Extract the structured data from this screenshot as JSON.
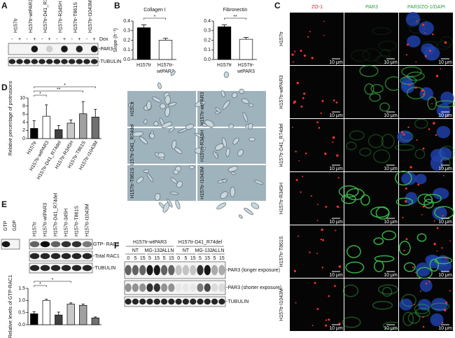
{
  "panel_letters": [
    "A",
    "B",
    "C",
    "D",
    "E",
    "F"
  ],
  "panel_a": {
    "lanes": [
      "H157tr",
      "H157tr-wtPAR3",
      "H157tr-D41_R74del",
      "H157tr-R345H",
      "H157tr-T861S",
      "H157tr-I1043M"
    ],
    "dox_label": "Dox",
    "dox": [
      "-",
      "+",
      "-",
      "+",
      "-",
      "+",
      "-",
      "+",
      "-",
      "+",
      "-",
      "+"
    ],
    "bands": [
      "-PAR3",
      "-TUBULIN"
    ]
  },
  "chart_data": [
    {
      "type": "bar",
      "title": "Collagen I",
      "ylabel": "Slope (h⁻¹)",
      "categories": [
        "H157tr",
        "H157tr-wtPAR3"
      ],
      "values": [
        0.33,
        0.2
      ],
      "errors": [
        0.03,
        0.02
      ],
      "colors": [
        "#000000",
        "#ffffff"
      ],
      "ylim": [
        0,
        0.4
      ],
      "yticks": [
        {
          "value": 0,
          "label": "0.0"
        },
        0.1,
        0.2,
        0.3,
        0.4
      ],
      "annotations": [
        {
          "text": "*",
          "between": [
            0,
            1
          ]
        }
      ]
    },
    {
      "type": "bar",
      "title": "Fibronectin",
      "categories": [
        "H157tr",
        "H157tr-wtPAR3"
      ],
      "values": [
        0.34,
        0.21
      ],
      "errors": [
        0.02,
        0.02
      ],
      "colors": [
        "#000000",
        "#ffffff"
      ],
      "ylim": [
        0,
        0.4
      ],
      "yticks": [
        {
          "value": 0,
          "label": "0.0"
        },
        0.1,
        0.2,
        0.3,
        0.4
      ],
      "annotations": [
        {
          "text": "**",
          "between": [
            0,
            1
          ]
        }
      ]
    },
    {
      "type": "bar",
      "ylabel": "Relative percentage of protrusions",
      "categories": [
        "H157tr",
        "H157tr-wtPAR3",
        "H157tr-D41_R74del",
        "H157tr-R345H",
        "H157tr-T861S",
        "H157tr-I1043M"
      ],
      "values": [
        2.5,
        5.5,
        2.2,
        3.8,
        6.1,
        5.3
      ],
      "errors": [
        1.9,
        2.8,
        1.0,
        0.8,
        3.0,
        1.9
      ],
      "colors": [
        "#000000",
        "#ffffff",
        "#404040",
        "#c8c8c8",
        "#a0a0a0",
        "#707070"
      ],
      "ylim": [
        0,
        10
      ],
      "yticks": [
        0,
        2,
        4,
        6,
        8,
        10
      ],
      "annotations": [
        {
          "text": "*",
          "between": [
            0,
            1
          ]
        },
        {
          "text": "**",
          "between": [
            0,
            4
          ]
        },
        {
          "text": "*",
          "between": [
            0,
            5
          ]
        }
      ]
    },
    {
      "type": "bar",
      "ylabel": "Relative levels of GTP-RAC1",
      "categories": [
        null,
        null,
        null,
        null,
        null,
        null
      ],
      "values": [
        0.45,
        1.0,
        0.4,
        0.85,
        0.8,
        0.28
      ],
      "errors": [
        0.08,
        0.05,
        0.12,
        0.05,
        0.05,
        0.04
      ],
      "colors": [
        "#000000",
        "#ffffff",
        "#404040",
        "#c8c8c8",
        "#a0a0a0",
        "#707070"
      ],
      "ylim": [
        0,
        1.5
      ],
      "yticks": [
        {
          "value": 0,
          "label": "0.0"
        },
        0.5,
        {
          "value": 1,
          "label": "1.0"
        },
        1.5
      ],
      "annotations": [
        {
          "text": "*",
          "between": [
            0,
            1
          ]
        },
        {
          "text": "*",
          "between": [
            0,
            3
          ]
        }
      ]
    }
  ],
  "panel_c": {
    "channels": [
      "ZO-1",
      "PAR3",
      "PAR3/ZO-1/DAPI"
    ],
    "rows": [
      "H157tr",
      "H157tr-wtPAR3",
      "H157tr-D41_R74del",
      "H157tr-R345H",
      "H157tr-T861S",
      "H157tr-I1043M"
    ],
    "scale_bar": "10 μm"
  },
  "micrographs": {
    "labels": [
      "H157tr",
      "H157tr-wtPAR3",
      "H157tr-D41_R74del",
      "H157tr-R345H",
      "H157tr-T861S",
      "H157tr-I1043M"
    ]
  },
  "panel_e": {
    "lanes": [
      "GTP",
      "GDP",
      "H157tr",
      "H157tr-wtPAR3",
      "H157tr-D41_R74del",
      "H157tr-345H",
      "H157tr-T861S",
      "H157tr-I1043M"
    ],
    "bands": [
      "GTP- RAC1",
      "-Total RAC1",
      "-TUBULIN"
    ]
  },
  "panel_f": {
    "groups": [
      "H157tr-wtPAR3",
      "H157tr-D41_R74del"
    ],
    "treatments": [
      "NT",
      "MG-132",
      "ALLN",
      "NT",
      "MG-132",
      "ALLN"
    ],
    "times": [
      "0",
      "5",
      "15",
      "5",
      "15",
      "5",
      "15",
      "0",
      "5",
      "15",
      "5",
      "15",
      "5",
      "15"
    ],
    "bands": [
      "-PAR3 (longer exposure)",
      "-PAR3 (shorter exposure)",
      "-TUBULIN"
    ]
  }
}
